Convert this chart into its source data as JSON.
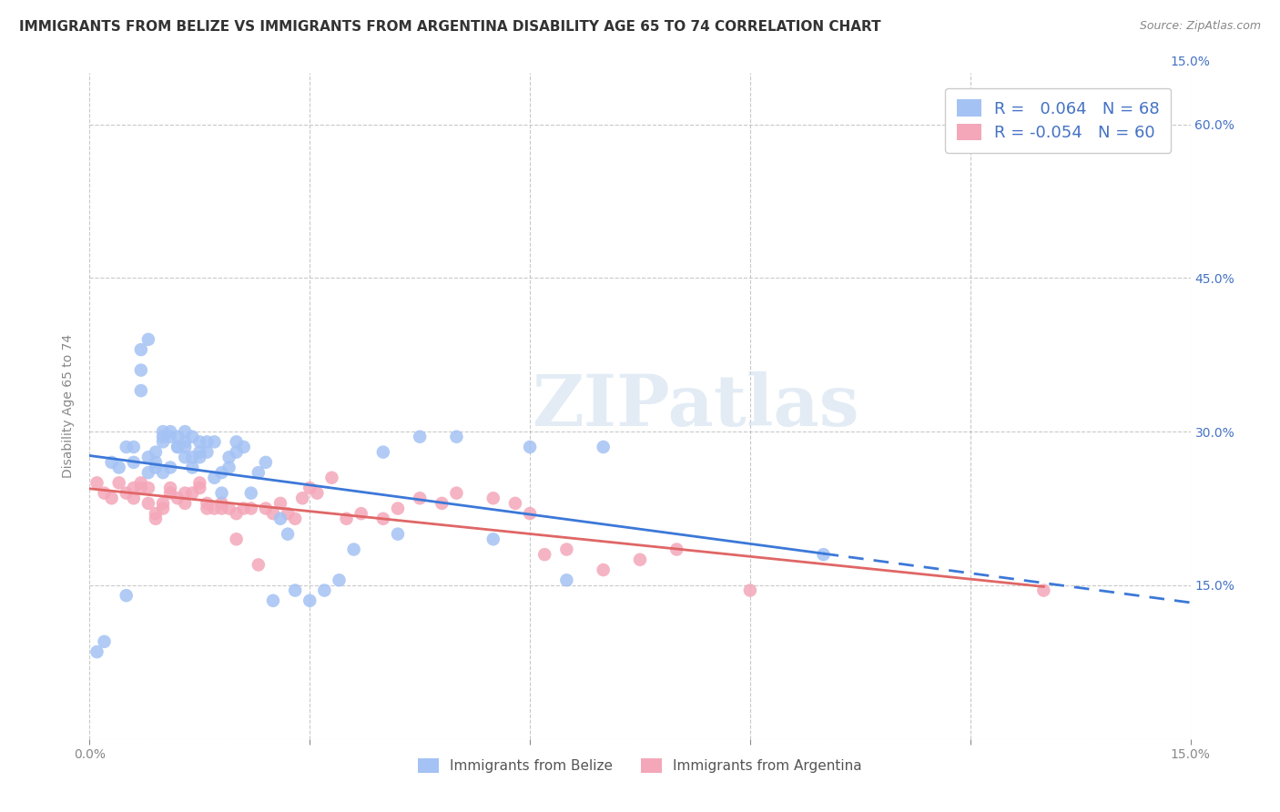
{
  "title": "IMMIGRANTS FROM BELIZE VS IMMIGRANTS FROM ARGENTINA DISABILITY AGE 65 TO 74 CORRELATION CHART",
  "source": "Source: ZipAtlas.com",
  "ylabel": "Disability Age 65 to 74",
  "xlim": [
    0.0,
    0.15
  ],
  "ylim": [
    0.0,
    0.65
  ],
  "xticks": [
    0.0,
    0.03,
    0.06,
    0.09,
    0.12,
    0.15
  ],
  "xticklabels_bottom": [
    "0.0%",
    "",
    "",
    "",
    "",
    "15.0%"
  ],
  "xticklabels_top": [
    "",
    "",
    "",
    "",
    "",
    "15.0%"
  ],
  "yticks": [
    0.0,
    0.15,
    0.3,
    0.45,
    0.6
  ],
  "yticklabels_left": [
    "",
    "",
    "",
    "",
    ""
  ],
  "yticklabels_right": [
    "",
    "15.0%",
    "30.0%",
    "45.0%",
    "60.0%"
  ],
  "belize_color": "#a4c2f4",
  "argentina_color": "#f4a7b9",
  "belize_line_color": "#3c78d8",
  "argentina_line_color": "#e06666",
  "belize_R": 0.064,
  "belize_N": 68,
  "argentina_R": -0.054,
  "argentina_N": 60,
  "legend_label_belize": "Immigrants from Belize",
  "legend_label_argentina": "Immigrants from Argentina",
  "watermark": "ZIPatlas",
  "background_color": "#ffffff",
  "grid_color": "#bbbbbb",
  "title_color": "#333333",
  "source_color": "#888888",
  "tick_color_blue": "#4472C4",
  "tick_color_gray": "#888888",
  "title_fontsize": 11,
  "axis_label_fontsize": 10,
  "tick_fontsize": 10,
  "belize_x": [
    0.001,
    0.002,
    0.003,
    0.004,
    0.005,
    0.005,
    0.006,
    0.006,
    0.007,
    0.007,
    0.007,
    0.008,
    0.008,
    0.008,
    0.009,
    0.009,
    0.009,
    0.01,
    0.01,
    0.01,
    0.01,
    0.011,
    0.011,
    0.011,
    0.012,
    0.012,
    0.012,
    0.013,
    0.013,
    0.013,
    0.013,
    0.014,
    0.014,
    0.014,
    0.015,
    0.015,
    0.015,
    0.016,
    0.016,
    0.017,
    0.017,
    0.018,
    0.018,
    0.019,
    0.019,
    0.02,
    0.02,
    0.021,
    0.022,
    0.023,
    0.024,
    0.025,
    0.026,
    0.027,
    0.028,
    0.03,
    0.032,
    0.034,
    0.036,
    0.04,
    0.042,
    0.045,
    0.05,
    0.055,
    0.06,
    0.065,
    0.07,
    0.1
  ],
  "belize_y": [
    0.085,
    0.095,
    0.27,
    0.265,
    0.14,
    0.285,
    0.27,
    0.285,
    0.34,
    0.36,
    0.38,
    0.26,
    0.275,
    0.39,
    0.265,
    0.27,
    0.28,
    0.26,
    0.29,
    0.295,
    0.3,
    0.265,
    0.295,
    0.3,
    0.285,
    0.285,
    0.295,
    0.275,
    0.285,
    0.29,
    0.3,
    0.265,
    0.275,
    0.295,
    0.275,
    0.28,
    0.29,
    0.28,
    0.29,
    0.255,
    0.29,
    0.24,
    0.26,
    0.265,
    0.275,
    0.28,
    0.29,
    0.285,
    0.24,
    0.26,
    0.27,
    0.135,
    0.215,
    0.2,
    0.145,
    0.135,
    0.145,
    0.155,
    0.185,
    0.28,
    0.2,
    0.295,
    0.295,
    0.195,
    0.285,
    0.155,
    0.285,
    0.18
  ],
  "argentina_x": [
    0.001,
    0.002,
    0.003,
    0.004,
    0.005,
    0.006,
    0.006,
    0.007,
    0.007,
    0.008,
    0.008,
    0.009,
    0.009,
    0.01,
    0.01,
    0.011,
    0.011,
    0.012,
    0.013,
    0.013,
    0.014,
    0.015,
    0.015,
    0.016,
    0.016,
    0.017,
    0.018,
    0.018,
    0.019,
    0.02,
    0.02,
    0.021,
    0.022,
    0.023,
    0.024,
    0.025,
    0.026,
    0.027,
    0.028,
    0.029,
    0.03,
    0.031,
    0.033,
    0.035,
    0.037,
    0.04,
    0.042,
    0.045,
    0.048,
    0.05,
    0.055,
    0.058,
    0.06,
    0.062,
    0.065,
    0.07,
    0.075,
    0.08,
    0.09,
    0.13
  ],
  "argentina_y": [
    0.25,
    0.24,
    0.235,
    0.25,
    0.24,
    0.235,
    0.245,
    0.245,
    0.25,
    0.23,
    0.245,
    0.215,
    0.22,
    0.225,
    0.23,
    0.24,
    0.245,
    0.235,
    0.23,
    0.24,
    0.24,
    0.245,
    0.25,
    0.225,
    0.23,
    0.225,
    0.225,
    0.23,
    0.225,
    0.195,
    0.22,
    0.225,
    0.225,
    0.17,
    0.225,
    0.22,
    0.23,
    0.22,
    0.215,
    0.235,
    0.245,
    0.24,
    0.255,
    0.215,
    0.22,
    0.215,
    0.225,
    0.235,
    0.23,
    0.24,
    0.235,
    0.23,
    0.22,
    0.18,
    0.185,
    0.165,
    0.175,
    0.185,
    0.145,
    0.145
  ]
}
